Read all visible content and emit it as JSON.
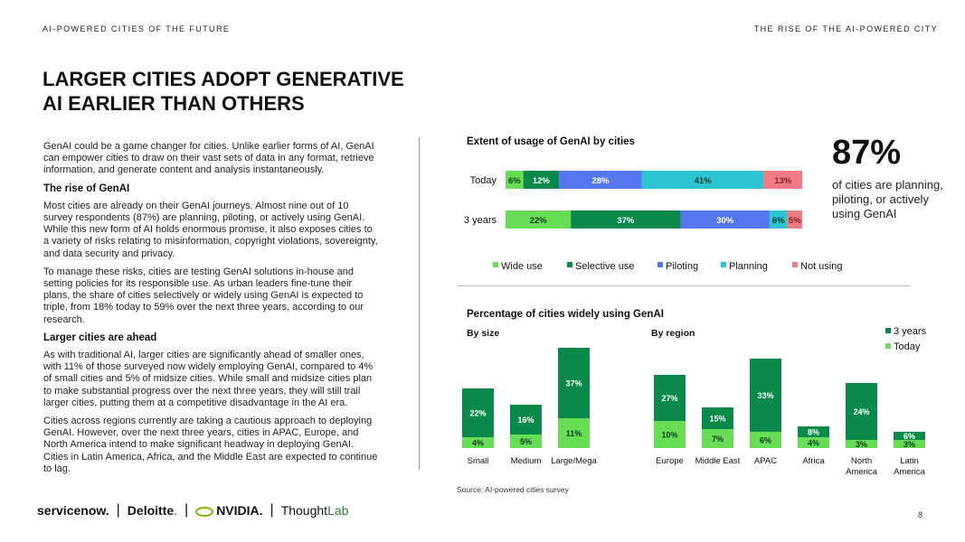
{
  "header": {
    "left": "AI-POWERED CITIES OF THE FUTURE",
    "right": "THE RISE OF THE AI-POWERED CITY"
  },
  "title": "LARGER CITIES ADOPT GENERATIVE AI EARLIER THAN OTHERS",
  "body": {
    "p1": "GenAI could be a game changer for cities. Unlike earlier forms of AI, GenAI can empower cities to draw on their vast sets of data in any format, retrieve information, and generate content and analysis instantaneously.",
    "h1": "The rise of GenAI",
    "p2": "Most cities are already on their GenAI journeys. Almost nine out of 10 survey respondents (87%) are planning, piloting, or actively using GenAI. While this new form of AI holds enormous promise, it also exposes cities to a variety of risks relating to misinformation, copyright violations, sovereignty, and data security and privacy.",
    "p3": "To manage these risks, cities are testing GenAI solutions in-house and setting policies for its responsible use. As urban leaders fine-tune their plans, the share of cities selectively or widely using GenAI is expected to triple, from 18% today to 59% over the next three years, according to our research.",
    "h2": "Larger cities are ahead",
    "p4": "As with traditional AI, larger cities are significantly ahead of smaller ones, with 11% of those surveyed now widely employing GenAI, compared to 4% of small cities and 5% of midsize cities. While small and midsize cities plan to make substantial progress over the next three years, they will still trail larger cities, putting them at a competitive disadvantage in the AI era.",
    "p5": "Cities across regions currently are taking a cautious approach to deploying GenAI. However, over the next three years, cities in APAC, Europe, and North America intend to make significant headway in deploying GenAI. Cities in Latin America, Africa, and the Middle East are expected to continue to lag."
  },
  "stat": {
    "value": "87%",
    "text": "of cities are planning, piloting, or actively using GenAI"
  },
  "source": "Source: AI-powered cities survey",
  "page_number": "8",
  "logos": {
    "servicenow": "servicenow.",
    "deloitte": "Deloitte",
    "nvidia": "NVIDIA.",
    "thoughtlab_dark": "Thought",
    "thoughtlab_light": "Lab"
  },
  "colors": {
    "wide_use": "#66dd55",
    "selective_use": "#0a8a4a",
    "piloting": "#5577ee",
    "planning": "#2cc3d3",
    "not_using": "#f17a85"
  },
  "chart_data": [
    {
      "type": "bar",
      "orientation": "horizontal-stacked",
      "title": "Extent of usage of GenAI by cities",
      "categories": [
        "Today",
        "3 years"
      ],
      "series": [
        {
          "name": "Wide use",
          "values": [
            6,
            22
          ]
        },
        {
          "name": "Selective use",
          "values": [
            12,
            37
          ]
        },
        {
          "name": "Piloting",
          "values": [
            28,
            30
          ]
        },
        {
          "name": "Planning",
          "values": [
            41,
            6
          ]
        },
        {
          "name": "Not using",
          "values": [
            13,
            5
          ]
        }
      ],
      "value_format": "%",
      "legend": "bottom"
    },
    {
      "type": "bar",
      "orientation": "vertical-stacked",
      "title": "Percentage of cities widely using GenAI",
      "groups": [
        {
          "label": "By size",
          "categories": [
            "Small",
            "Medium",
            "Large/Mega"
          ]
        },
        {
          "label": "By region",
          "categories": [
            "Europe",
            "Middle East",
            "APAC",
            "Africa",
            "North America",
            "Latin America"
          ]
        }
      ],
      "categories": [
        "Small",
        "Medium",
        "Large/Mega",
        "Europe",
        "Middle East",
        "APAC",
        "Africa",
        "North America",
        "Latin America"
      ],
      "series": [
        {
          "name": "Today",
          "values": [
            4,
            5,
            11,
            10,
            7,
            6,
            4,
            3,
            3
          ]
        },
        {
          "name": "3 years",
          "values": [
            22,
            16,
            37,
            27,
            15,
            33,
            8,
            24,
            6
          ]
        }
      ],
      "value_format": "%",
      "legend": "top-right"
    }
  ]
}
